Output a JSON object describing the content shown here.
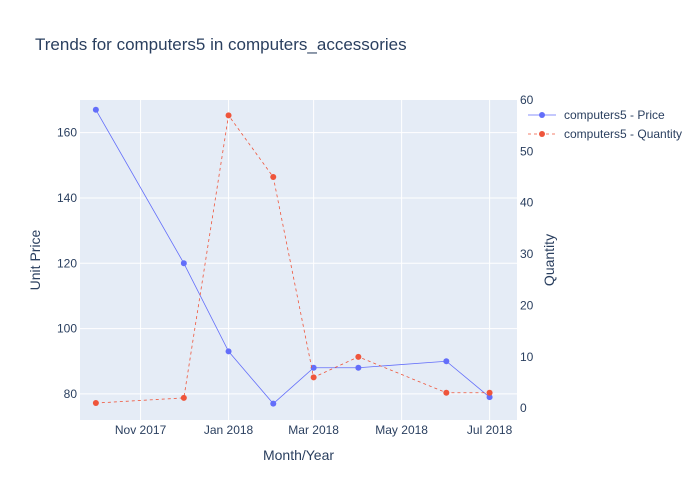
{
  "chart_data": {
    "type": "line",
    "title": "Trends for computers5 in computers_accessories",
    "xlabel": "Month/Year",
    "ylabel": "Unit Price",
    "y2label": "Quantity",
    "x_ticks": [
      "Nov 2017",
      "Jan 2018",
      "Mar 2018",
      "May 2018",
      "Jul 2018"
    ],
    "x_tick_dates": [
      "2017-11-01",
      "2018-01-01",
      "2018-03-01",
      "2018-05-01",
      "2018-07-01"
    ],
    "x_range": [
      "2017-09-20",
      "2018-07-20"
    ],
    "x": [
      "2017-10-01",
      "2017-12-01",
      "2018-01-01",
      "2018-02-01",
      "2018-03-01",
      "2018-04-01",
      "2018-06-01",
      "2018-07-01"
    ],
    "y_ticks": [
      80,
      100,
      120,
      140,
      160
    ],
    "y_range": [
      72,
      170
    ],
    "y2_ticks": [
      0,
      10,
      20,
      30,
      40,
      50,
      60
    ],
    "y2_range": [
      -2.3,
      60
    ],
    "grid": true,
    "legend_position": "top-right",
    "series": [
      {
        "name": "computers5 - Price",
        "axis": "y",
        "color": "#636efa",
        "dash": "solid",
        "values": [
          167,
          120,
          93,
          77,
          88,
          88,
          90,
          79
        ]
      },
      {
        "name": "computers5 - Quantity",
        "axis": "y2",
        "color": "#ef553b",
        "dash": "dash",
        "values": [
          1,
          2,
          57,
          45,
          6,
          10,
          3,
          3
        ]
      }
    ]
  }
}
